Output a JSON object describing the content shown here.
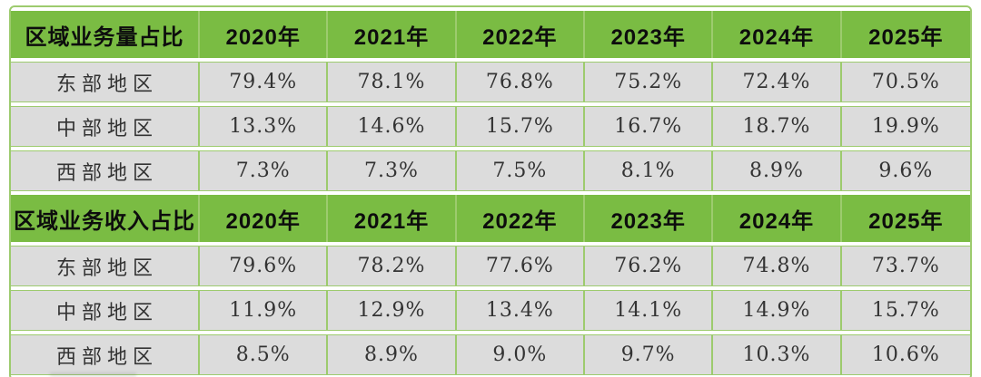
{
  "colors": {
    "header-green": "#7abc43",
    "border-green": "#9dcb6e",
    "cell-gray": "#dcdcdc",
    "header-text": "#0d0d0d",
    "cell-text": "#333333",
    "page-bg": "#ffffff"
  },
  "chart_data": [
    {
      "type": "table",
      "title": "区域业务量占比",
      "columns": [
        "2020年",
        "2021年",
        "2022年",
        "2023年",
        "2024年",
        "2025年"
      ],
      "rows": [
        {
          "label": "东部地区",
          "values": [
            79.4,
            78.1,
            76.8,
            75.2,
            72.4,
            70.5
          ],
          "display": [
            "79.4%",
            "78.1%",
            "76.8%",
            "75.2%",
            "72.4%",
            "70.5%"
          ]
        },
        {
          "label": "中部地区",
          "values": [
            13.3,
            14.6,
            15.7,
            16.7,
            18.7,
            19.9
          ],
          "display": [
            "13.3%",
            "14.6%",
            "15.7%",
            "16.7%",
            "18.7%",
            "19.9%"
          ]
        },
        {
          "label": "西部地区",
          "values": [
            7.3,
            7.3,
            7.5,
            8.1,
            8.9,
            9.6
          ],
          "display": [
            "7.3%",
            "7.3%",
            "7.5%",
            "8.1%",
            "8.9%",
            "9.6%"
          ]
        }
      ]
    },
    {
      "type": "table",
      "title": "区域业务收入占比",
      "columns": [
        "2020年",
        "2021年",
        "2022年",
        "2023年",
        "2024年",
        "2025年"
      ],
      "rows": [
        {
          "label": "东部地区",
          "values": [
            79.6,
            78.2,
            77.6,
            76.2,
            74.8,
            73.7
          ],
          "display": [
            "79.6%",
            "78.2%",
            "77.6%",
            "76.2%",
            "74.8%",
            "73.7%"
          ]
        },
        {
          "label": "中部地区",
          "values": [
            11.9,
            12.9,
            13.4,
            14.1,
            14.9,
            15.7
          ],
          "display": [
            "11.9%",
            "12.9%",
            "13.4%",
            "14.1%",
            "14.9%",
            "15.7%"
          ]
        },
        {
          "label": "西部地区",
          "values": [
            8.5,
            8.9,
            9.0,
            9.7,
            10.3,
            10.6
          ],
          "display": [
            "8.5%",
            "8.9%",
            "9.0%",
            "9.7%",
            "10.3%",
            "10.6%"
          ]
        }
      ]
    }
  ]
}
